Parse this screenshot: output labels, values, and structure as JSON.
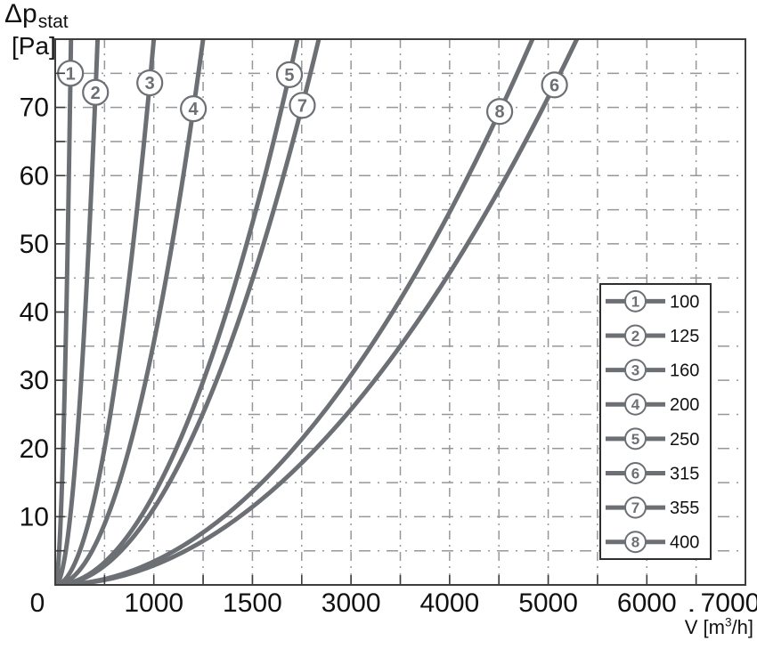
{
  "y_axis_title": {
    "symbol": "Δp",
    "subscript": "stat",
    "unit": "[Pa]"
  },
  "x_axis_title": {
    "symbol": "V",
    "dot": "˙",
    "unit_pre": "[m",
    "unit_sup": "3",
    "unit_post": "/h]"
  },
  "chart_data": {
    "type": "line",
    "title": "",
    "xlabel": "V̇ [m³/h]",
    "ylabel": "Δp_stat [Pa]",
    "x_axis": {
      "minor_divisions": 14,
      "tick_values": [
        0,
        1000,
        1500,
        3000,
        4000,
        5000,
        6000,
        7000
      ],
      "tick_labels": [
        "0",
        "1000",
        "1500",
        "3000",
        "4000",
        "5000",
        "6000",
        "7000"
      ]
    },
    "y_axis": {
      "range": [
        0,
        80
      ],
      "minor_step_pa": 5,
      "tick_labels": [
        "10",
        "20",
        "30",
        "40",
        "50",
        "60",
        "70"
      ]
    },
    "grid": true,
    "legend_position": "right-middle",
    "curves": [
      {
        "id": "1",
        "diameter_mm": "100",
        "flow_at_80pa_m3h": 160,
        "label_at_pa": 75.0
      },
      {
        "id": "2",
        "diameter_mm": "125",
        "flow_at_80pa_m3h": 430,
        "label_at_pa": 72.2
      },
      {
        "id": "3",
        "diameter_mm": "160",
        "flow_at_80pa_m3h": 1000,
        "label_at_pa": 73.6
      },
      {
        "id": "4",
        "diameter_mm": "200",
        "flow_at_80pa_m3h": 1250,
        "label_at_pa": 69.8
      },
      {
        "id": "5",
        "diameter_mm": "250",
        "flow_at_80pa_m3h": 2185,
        "label_at_pa": 74.8
      },
      {
        "id": "6",
        "diameter_mm": "315",
        "flow_at_80pa_m3h": 5290,
        "label_at_pa": 73.3
      },
      {
        "id": "7",
        "diameter_mm": "355",
        "flow_at_80pa_m3h": 2510,
        "label_at_pa": 70.3
      },
      {
        "id": "8",
        "diameter_mm": "400",
        "flow_at_80pa_m3h": 4840,
        "label_at_pa": 69.4
      }
    ],
    "legend": [
      {
        "marker": "1",
        "label": "100"
      },
      {
        "marker": "2",
        "label": "125"
      },
      {
        "marker": "3",
        "label": "160"
      },
      {
        "marker": "4",
        "label": "200"
      },
      {
        "marker": "5",
        "label": "250"
      },
      {
        "marker": "6",
        "label": "315"
      },
      {
        "marker": "7",
        "label": "355"
      },
      {
        "marker": "8",
        "label": "400"
      }
    ]
  },
  "colors": {
    "curve": "#6c7075",
    "grid": "#94979b",
    "axis": "#3d3d3d",
    "text": "#111111",
    "legend_border": "#2e2e2e",
    "background": "#ffffff"
  }
}
